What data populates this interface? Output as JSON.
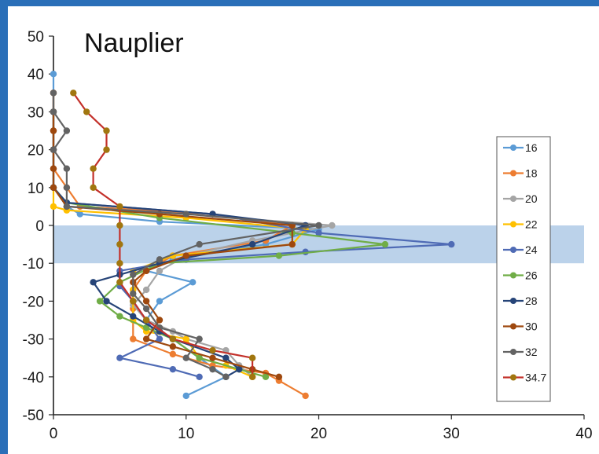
{
  "chart_data": {
    "type": "line",
    "title": "Nauplier",
    "xlabel": "",
    "ylabel": "",
    "xlim": [
      0,
      40
    ],
    "ylim": [
      -50,
      50
    ],
    "x_ticks": [
      "0",
      "10",
      "20",
      "30",
      "40"
    ],
    "y_ticks": [
      "50",
      "40",
      "30",
      "20",
      "10",
      "0",
      "-10",
      "-20",
      "-30",
      "-40",
      "-50"
    ],
    "band": {
      "y_from": -10,
      "y_to": 0,
      "color": "#b4cde8"
    },
    "legend_position": "right",
    "grid": false,
    "series": [
      {
        "name": "16",
        "color": "#5b9bd5",
        "points": [
          [
            0,
            40
          ],
          [
            0,
            30
          ],
          [
            0,
            20
          ],
          [
            0,
            10
          ],
          [
            1,
            5
          ],
          [
            2,
            3
          ],
          [
            8,
            1
          ],
          [
            20,
            -1
          ],
          [
            16,
            -5
          ],
          [
            9,
            -9
          ],
          [
            7,
            -12
          ],
          [
            10.5,
            -15
          ],
          [
            8,
            -20
          ],
          [
            7,
            -25
          ],
          [
            9,
            -30
          ],
          [
            11,
            -35
          ],
          [
            13,
            -40
          ],
          [
            10,
            -45
          ]
        ]
      },
      {
        "name": "18",
        "color": "#ed7d31",
        "points": [
          [
            0,
            35
          ],
          [
            0,
            30
          ],
          [
            0,
            25
          ],
          [
            0,
            20
          ],
          [
            0,
            15
          ],
          [
            1,
            10
          ],
          [
            2,
            5
          ],
          [
            12,
            3
          ],
          [
            18,
            0
          ],
          [
            16,
            -4
          ],
          [
            9,
            -8
          ],
          [
            7,
            -12
          ],
          [
            6,
            -17
          ],
          [
            6,
            -22
          ],
          [
            6,
            -30
          ],
          [
            9,
            -34
          ],
          [
            12,
            -37
          ],
          [
            16,
            -39
          ],
          [
            17,
            -41
          ],
          [
            19,
            -45
          ]
        ]
      },
      {
        "name": "20",
        "color": "#a5a5a5",
        "points": [
          [
            0,
            35
          ],
          [
            0,
            30
          ],
          [
            0,
            25
          ],
          [
            0,
            20
          ],
          [
            0,
            15
          ],
          [
            0,
            10
          ],
          [
            1,
            5
          ],
          [
            10,
            3
          ],
          [
            21,
            0
          ],
          [
            15,
            -4
          ],
          [
            10,
            -8
          ],
          [
            8,
            -12
          ],
          [
            7,
            -17
          ],
          [
            6,
            -21
          ],
          [
            7,
            -25
          ],
          [
            9,
            -28
          ],
          [
            10,
            -30
          ],
          [
            13,
            -33
          ],
          [
            14,
            -37
          ],
          [
            15,
            -40
          ]
        ]
      },
      {
        "name": "22",
        "color": "#ffc000",
        "points": [
          [
            0,
            10
          ],
          [
            0,
            5
          ],
          [
            1,
            4
          ],
          [
            10,
            2
          ],
          [
            19,
            -1
          ],
          [
            18,
            -5
          ],
          [
            9,
            -8
          ],
          [
            6,
            -12
          ],
          [
            6,
            -17
          ],
          [
            6,
            -20
          ],
          [
            6,
            -25
          ],
          [
            7,
            -28
          ],
          [
            10,
            -30
          ],
          [
            11,
            -35
          ],
          [
            13,
            -37
          ],
          [
            15,
            -40
          ]
        ]
      },
      {
        "name": "24",
        "color": "#4f6bb5",
        "points": [
          [
            0,
            30
          ],
          [
            0,
            20
          ],
          [
            0,
            10
          ],
          [
            1,
            6
          ],
          [
            12,
            3
          ],
          [
            20,
            -2
          ],
          [
            30,
            -5
          ],
          [
            19,
            -7
          ],
          [
            10,
            -9
          ],
          [
            5,
            -12
          ],
          [
            5,
            -16
          ],
          [
            6,
            -20
          ],
          [
            7,
            -25
          ],
          [
            8,
            -30
          ],
          [
            5,
            -35
          ],
          [
            9,
            -38
          ],
          [
            11,
            -40
          ]
        ]
      },
      {
        "name": "26",
        "color": "#70ad47",
        "points": [
          [
            0,
            30
          ],
          [
            0,
            20
          ],
          [
            0,
            10
          ],
          [
            1,
            6
          ],
          [
            8,
            2
          ],
          [
            18,
            -2
          ],
          [
            25,
            -5
          ],
          [
            17,
            -8
          ],
          [
            8,
            -10
          ],
          [
            5,
            -15
          ],
          [
            3.5,
            -20
          ],
          [
            5,
            -24
          ],
          [
            7,
            -27
          ],
          [
            9,
            -30
          ],
          [
            11,
            -35
          ],
          [
            14,
            -38
          ],
          [
            16,
            -40
          ]
        ]
      },
      {
        "name": "28",
        "color": "#264478",
        "points": [
          [
            0,
            30
          ],
          [
            0,
            20
          ],
          [
            0,
            10
          ],
          [
            1,
            6
          ],
          [
            12,
            3
          ],
          [
            19,
            0
          ],
          [
            15,
            -5
          ],
          [
            8,
            -10
          ],
          [
            5,
            -13
          ],
          [
            3,
            -15
          ],
          [
            4,
            -20
          ],
          [
            6,
            -24
          ],
          [
            8,
            -28
          ],
          [
            9,
            -30
          ],
          [
            13,
            -35
          ],
          [
            14,
            -38
          ],
          [
            13,
            -40
          ]
        ]
      },
      {
        "name": "30",
        "color": "#9e480e",
        "points": [
          [
            0,
            35
          ],
          [
            0,
            30
          ],
          [
            0,
            25
          ],
          [
            0,
            20
          ],
          [
            0,
            15
          ],
          [
            0,
            10
          ],
          [
            1,
            5
          ],
          [
            8,
            3
          ],
          [
            18,
            0
          ],
          [
            18,
            -5
          ],
          [
            10,
            -8
          ],
          [
            7,
            -12
          ],
          [
            6,
            -15
          ],
          [
            7,
            -20
          ],
          [
            8,
            -25
          ],
          [
            7,
            -30
          ],
          [
            9,
            -32
          ],
          [
            12,
            -35
          ],
          [
            15,
            -38
          ],
          [
            17,
            -40
          ]
        ]
      },
      {
        "name": "32",
        "color": "#636363",
        "points": [
          [
            0,
            35
          ],
          [
            0,
            30
          ],
          [
            1,
            25
          ],
          [
            0,
            20
          ],
          [
            1,
            15
          ],
          [
            1,
            10
          ],
          [
            1,
            5
          ],
          [
            10,
            3
          ],
          [
            20,
            0
          ],
          [
            11,
            -5
          ],
          [
            8,
            -9
          ],
          [
            6,
            -13
          ],
          [
            6,
            -18
          ],
          [
            7,
            -22
          ],
          [
            8,
            -27
          ],
          [
            11,
            -30
          ],
          [
            10,
            -35
          ],
          [
            12,
            -38
          ],
          [
            13,
            -40
          ]
        ]
      },
      {
        "name": "34.7",
        "color": "#c3302a",
        "marker_color": "#a1760f",
        "points": [
          [
            1.5,
            35
          ],
          [
            2.5,
            30
          ],
          [
            4,
            25
          ],
          [
            4,
            20
          ],
          [
            3,
            15
          ],
          [
            3,
            10
          ],
          [
            5,
            5
          ],
          [
            5,
            0
          ],
          [
            5,
            -5
          ],
          [
            5,
            -10
          ],
          [
            5,
            -15
          ],
          [
            6,
            -20
          ],
          [
            7,
            -25
          ],
          [
            9,
            -30
          ],
          [
            12,
            -33
          ],
          [
            15,
            -35
          ],
          [
            15,
            -40
          ]
        ]
      }
    ]
  }
}
